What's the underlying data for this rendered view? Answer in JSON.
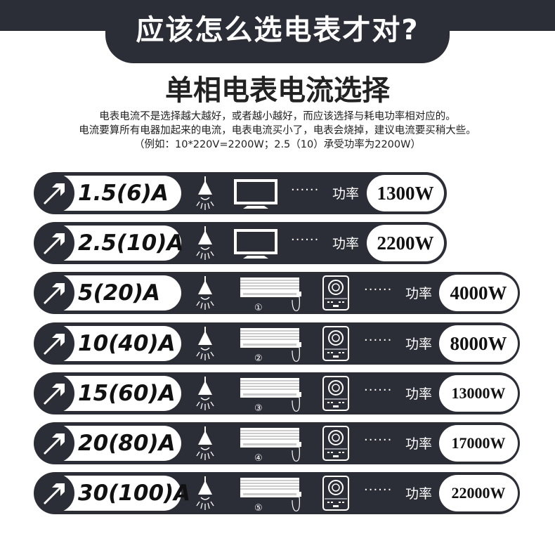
{
  "header": {
    "title": "应该怎么选电表才对?"
  },
  "subtitle": "单相电表电流选择",
  "description": [
    "电表电流不是选择越大越好，或者越小越好，而应该选择与耗电功率相对应的。",
    "电流要算所有电器加起来的电流，电表电流买小了，电表会烧掉，建议电流要买稍大些。",
    "（例如：10*220V=2200W；2.5（10）承受功率为2200W）"
  ],
  "power_label": "功率",
  "dots": "······",
  "colors": {
    "dark": "#2b2e37",
    "white": "#ffffff"
  },
  "rows": [
    {
      "rating": "1.5(6)A",
      "power": "1300W",
      "appliances": [
        "bulb-icon",
        "tv-icon"
      ]
    },
    {
      "rating": "2.5(10)A",
      "power": "2200W",
      "appliances": [
        "bulb-icon",
        "tv-icon"
      ]
    },
    {
      "rating": "5(20)A",
      "power": "4000W",
      "ac_count": "①",
      "appliances": [
        "bulb-icon",
        "air-conditioner-icon",
        "induction-cooker-icon"
      ]
    },
    {
      "rating": "10(40)A",
      "power": "8000W",
      "ac_count": "②",
      "appliances": [
        "bulb-icon",
        "air-conditioner-icon",
        "induction-cooker-icon"
      ]
    },
    {
      "rating": "15(60)A",
      "power": "13000W",
      "ac_count": "③",
      "appliances": [
        "bulb-icon",
        "air-conditioner-icon",
        "induction-cooker-icon"
      ]
    },
    {
      "rating": "20(80)A",
      "power": "17000W",
      "ac_count": "④",
      "appliances": [
        "bulb-icon",
        "air-conditioner-icon",
        "induction-cooker-icon"
      ]
    },
    {
      "rating": "30(100)A",
      "power": "22000W",
      "ac_count": "⑤",
      "appliances": [
        "bulb-icon",
        "air-conditioner-icon",
        "induction-cooker-icon"
      ]
    }
  ]
}
